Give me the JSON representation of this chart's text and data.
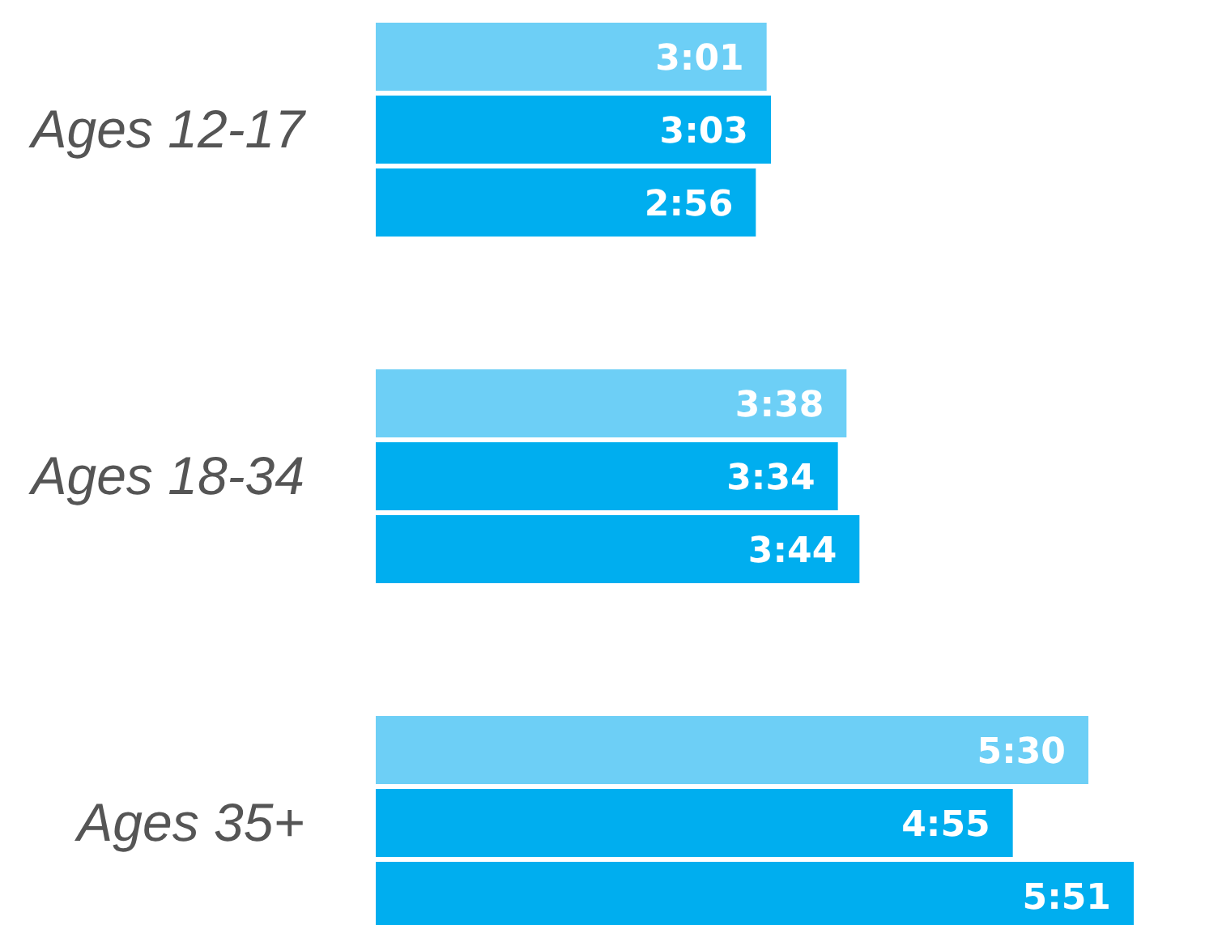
{
  "chart_data": {
    "type": "bar",
    "orientation": "horizontal",
    "categories": [
      "Ages 12-17",
      "Ages 18-34",
      "Ages 35+"
    ],
    "series": [
      {
        "color": "#6dcff6",
        "values": [
          181,
          218,
          330
        ],
        "value_labels": [
          "3:01",
          "3:38",
          "5:30"
        ]
      },
      {
        "color": "#00aeef",
        "values": [
          183,
          214,
          295
        ],
        "value_labels": [
          "3:03",
          "3:34",
          "4:55"
        ]
      },
      {
        "color": "#00aeef",
        "values": [
          176,
          224,
          351
        ],
        "value_labels": [
          "2:56",
          "3:44",
          "5:51"
        ]
      }
    ],
    "grid": false,
    "legend": false
  }
}
